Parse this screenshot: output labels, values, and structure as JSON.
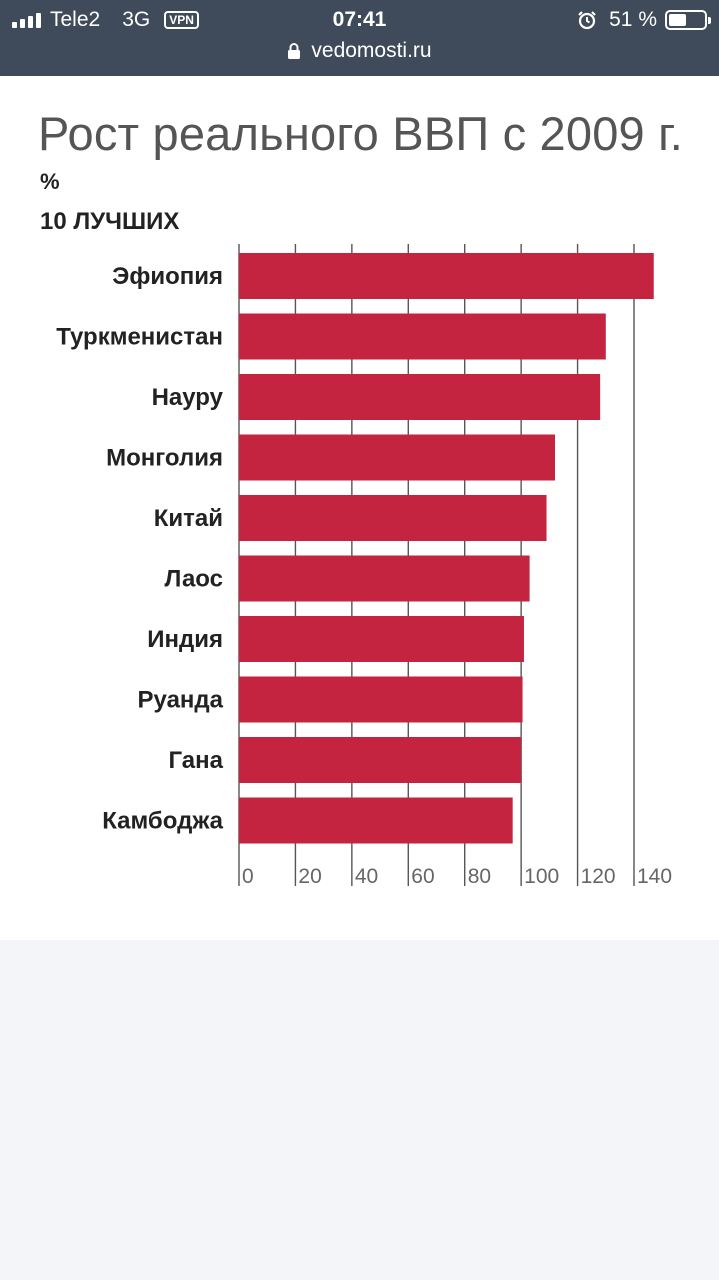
{
  "status_bar": {
    "carrier": "Tele2",
    "network": "3G",
    "vpn": "VPN",
    "time": "07:41",
    "battery_percent": "51 %",
    "battery_level": 0.51,
    "url": "vedomosti.ru"
  },
  "chart_data": {
    "type": "bar",
    "orientation": "horizontal",
    "title": "Рост реального ВВП с 2009 г.",
    "unit": "%",
    "subtitle": "10 ЛУЧШИХ",
    "categories": [
      "Эфиопия",
      "Туркменистан",
      "Науру",
      "Монголия",
      "Китай",
      "Лаос",
      "Индия",
      "Руанда",
      "Гана",
      "Камбоджа"
    ],
    "values": [
      147,
      130,
      128,
      112,
      109,
      103,
      101,
      100.5,
      100,
      97
    ],
    "xlim": [
      0,
      140
    ],
    "ticks": [
      0,
      20,
      40,
      60,
      80,
      100,
      120,
      140
    ],
    "tick_labels": [
      "0",
      "20",
      "40",
      "60",
      "80",
      "100",
      "120",
      "140"
    ],
    "grid": true,
    "bar_color": "#c4243f"
  }
}
